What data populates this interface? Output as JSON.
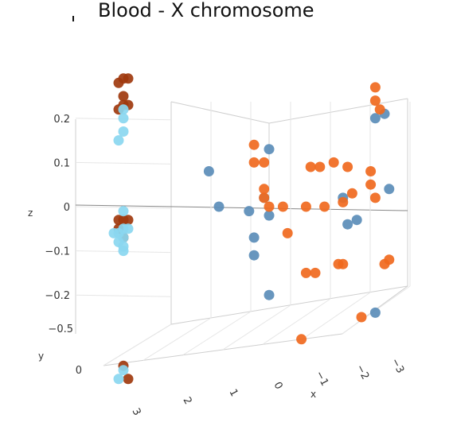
{
  "chart_data": {
    "type": "scatter",
    "title": "Blood  -  X chromosome",
    "xlabel": "x",
    "ylabel": "y",
    "zlabel": "z",
    "x_ticks": [
      "3",
      "2",
      "1",
      "0",
      "−1",
      "−2",
      "−3"
    ],
    "y_ticks": [
      "−0.5",
      "0"
    ],
    "z_ticks": [
      "0.2",
      "0.1",
      "0",
      "−0.1",
      "−0.2"
    ],
    "z_range": [
      -0.25,
      0.25
    ],
    "grid": true,
    "series": [
      {
        "color": "#a03a0e",
        "points": [
          {
            "x": 3.1,
            "y": 0.0,
            "z": 0.29
          },
          {
            "x": 3.0,
            "y": 0.0,
            "z": 0.29
          },
          {
            "x": 2.9,
            "y": 0.0,
            "z": 0.28
          },
          {
            "x": 3.0,
            "y": 0.0,
            "z": 0.25
          },
          {
            "x": 3.1,
            "y": 0.0,
            "z": 0.23
          },
          {
            "x": 3.0,
            "y": 0.0,
            "z": 0.23
          },
          {
            "x": 2.9,
            "y": 0.0,
            "z": 0.22
          },
          {
            "x": 3.1,
            "y": 0.0,
            "z": -0.03
          },
          {
            "x": 3.0,
            "y": 0.0,
            "z": -0.03
          },
          {
            "x": 2.9,
            "y": 0.0,
            "z": -0.03
          },
          {
            "x": 2.9,
            "y": 0.0,
            "z": -0.05
          },
          {
            "x": 3.0,
            "y": 0.0,
            "z": -0.07
          },
          {
            "x": 3.0,
            "y": 0.0,
            "z": -0.36
          },
          {
            "x": 3.1,
            "y": 0.0,
            "z": -0.39
          }
        ]
      },
      {
        "color": "#8ad7f0",
        "points": [
          {
            "x": 3.0,
            "y": 0.0,
            "z": 0.22
          },
          {
            "x": 3.0,
            "y": 0.0,
            "z": 0.2
          },
          {
            "x": 3.0,
            "y": 0.0,
            "z": 0.17
          },
          {
            "x": 2.9,
            "y": 0.0,
            "z": 0.15
          },
          {
            "x": 3.0,
            "y": 0.0,
            "z": -0.01
          },
          {
            "x": 3.1,
            "y": 0.0,
            "z": -0.05
          },
          {
            "x": 3.0,
            "y": 0.0,
            "z": -0.05
          },
          {
            "x": 2.9,
            "y": 0.0,
            "z": -0.06
          },
          {
            "x": 2.8,
            "y": 0.0,
            "z": -0.06
          },
          {
            "x": 3.0,
            "y": 0.0,
            "z": -0.07
          },
          {
            "x": 2.9,
            "y": 0.0,
            "z": -0.08
          },
          {
            "x": 3.0,
            "y": 0.0,
            "z": -0.09
          },
          {
            "x": 3.0,
            "y": 0.0,
            "z": -0.1
          },
          {
            "x": 3.0,
            "y": 0.0,
            "z": -0.37
          },
          {
            "x": 2.9,
            "y": 0.0,
            "z": -0.39
          }
        ]
      },
      {
        "color": "#5b8db8",
        "points": [
          {
            "x": 1.2,
            "y": 0.0,
            "z": 0.08
          },
          {
            "x": 0.0,
            "y": 0.0,
            "z": 0.13
          },
          {
            "x": 1.0,
            "y": 0.0,
            "z": 0.0
          },
          {
            "x": 0.4,
            "y": 0.0,
            "z": -0.01
          },
          {
            "x": 0.1,
            "y": 0.0,
            "z": 0.02
          },
          {
            "x": 0.0,
            "y": 0.0,
            "z": -0.02
          },
          {
            "x": 0.3,
            "y": 0.0,
            "z": -0.07
          },
          {
            "x": 0.3,
            "y": 0.0,
            "z": -0.11
          },
          {
            "x": 0.0,
            "y": 0.0,
            "z": -0.2
          },
          {
            "x": -2.3,
            "y": 0.0,
            "z": 0.2
          },
          {
            "x": -2.5,
            "y": 0.0,
            "z": 0.21
          },
          {
            "x": -1.6,
            "y": 0.0,
            "z": 0.02
          },
          {
            "x": -2.6,
            "y": 0.0,
            "z": 0.04
          },
          {
            "x": -1.9,
            "y": 0.0,
            "z": -0.03
          },
          {
            "x": -1.7,
            "y": 0.0,
            "z": -0.04
          },
          {
            "x": -2.3,
            "y": 0.0,
            "z": -0.24
          }
        ]
      },
      {
        "color": "#f0691e",
        "points": [
          {
            "x": 0.3,
            "y": 0.0,
            "z": 0.14
          },
          {
            "x": 0.3,
            "y": 0.0,
            "z": 0.1
          },
          {
            "x": 0.1,
            "y": 0.0,
            "z": 0.1
          },
          {
            "x": 0.1,
            "y": 0.0,
            "z": 0.04
          },
          {
            "x": 0.1,
            "y": 0.0,
            "z": 0.02
          },
          {
            "x": 0.0,
            "y": 0.0,
            "z": 0.0
          },
          {
            "x": -0.3,
            "y": 0.0,
            "z": 0.0
          },
          {
            "x": -0.4,
            "y": 0.0,
            "z": -0.06
          },
          {
            "x": -0.8,
            "y": 0.0,
            "z": 0.0
          },
          {
            "x": -1.2,
            "y": 0.0,
            "z": 0.0
          },
          {
            "x": -0.9,
            "y": 0.0,
            "z": 0.09
          },
          {
            "x": -1.1,
            "y": 0.0,
            "z": 0.09
          },
          {
            "x": -1.4,
            "y": 0.0,
            "z": 0.1
          },
          {
            "x": -1.6,
            "y": 0.0,
            "z": 0.01
          },
          {
            "x": -1.8,
            "y": 0.0,
            "z": 0.03
          },
          {
            "x": -1.7,
            "y": 0.0,
            "z": 0.09
          },
          {
            "x": -2.3,
            "y": 0.0,
            "z": 0.27
          },
          {
            "x": -2.3,
            "y": 0.0,
            "z": 0.24
          },
          {
            "x": -2.4,
            "y": 0.0,
            "z": 0.22
          },
          {
            "x": -2.2,
            "y": 0.0,
            "z": 0.08
          },
          {
            "x": -2.2,
            "y": 0.0,
            "z": 0.05
          },
          {
            "x": -2.3,
            "y": 0.0,
            "z": 0.02
          },
          {
            "x": -0.8,
            "y": 0.0,
            "z": -0.15
          },
          {
            "x": -1.0,
            "y": 0.0,
            "z": -0.15
          },
          {
            "x": -1.5,
            "y": 0.0,
            "z": -0.13
          },
          {
            "x": -1.6,
            "y": 0.0,
            "z": -0.13
          },
          {
            "x": -2.5,
            "y": 0.0,
            "z": -0.13
          },
          {
            "x": -2.6,
            "y": 0.0,
            "z": -0.12
          },
          {
            "x": -2.0,
            "y": 0.0,
            "z": -0.25
          },
          {
            "x": -0.7,
            "y": 0.0,
            "z": -0.3
          }
        ]
      }
    ]
  }
}
